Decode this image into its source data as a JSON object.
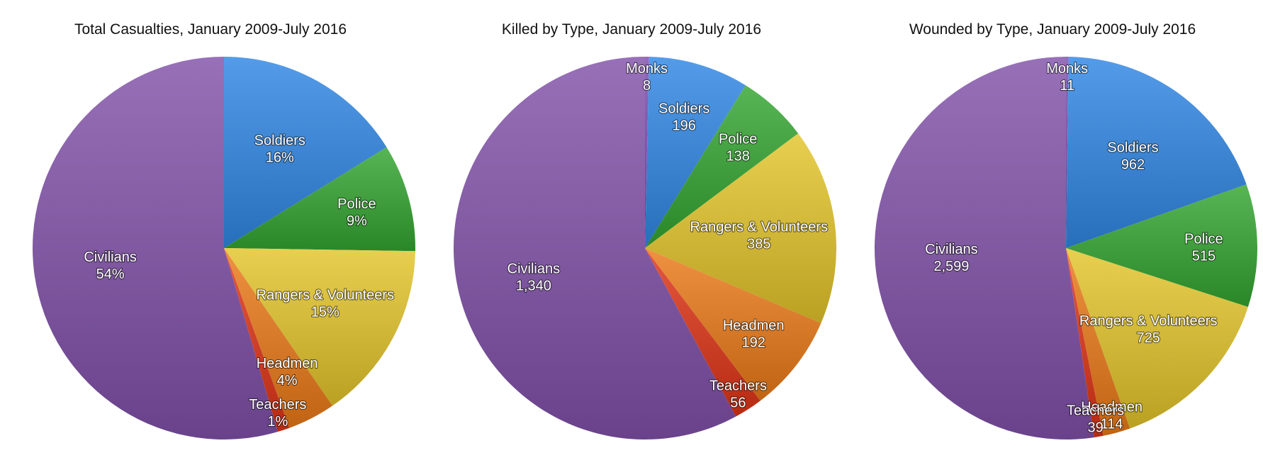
{
  "chart_data": [
    {
      "type": "pie",
      "title": "Total Casualties, January 2009-July 2016",
      "slices": [
        {
          "name": "Soldiers",
          "value": 16,
          "label": "16%",
          "color": "#2f86e4"
        },
        {
          "name": "Police",
          "value": 9,
          "label": "9%",
          "color": "#33a530"
        },
        {
          "name": "Rangers & Volunteers",
          "value": 15,
          "label": "15%",
          "color": "#e3c42a"
        },
        {
          "name": "Headmen",
          "value": 4,
          "label": "4%",
          "color": "#ea7a18"
        },
        {
          "name": "Teachers",
          "value": 1,
          "label": "1%",
          "color": "#df3316"
        },
        {
          "name": "Civilians",
          "value": 54,
          "label": "54%",
          "color": "#8051a9"
        }
      ]
    },
    {
      "type": "pie",
      "title": "Killed by Type, January 2009-July 2016",
      "slices": [
        {
          "name": "Monks",
          "value": 8,
          "label": "8",
          "color": "#7c4bb0"
        },
        {
          "name": "Soldiers",
          "value": 196,
          "label": "196",
          "color": "#2f86e4"
        },
        {
          "name": "Police",
          "value": 138,
          "label": "138",
          "color": "#33a530"
        },
        {
          "name": "Rangers & Volunteers",
          "value": 385,
          "label": "385",
          "color": "#e3c42a"
        },
        {
          "name": "Headmen",
          "value": 192,
          "label": "192",
          "color": "#ea7a18"
        },
        {
          "name": "Teachers",
          "value": 56,
          "label": "56",
          "color": "#df3316"
        },
        {
          "name": "Civilians",
          "value": 1340,
          "label": "1,340",
          "color": "#8051a9"
        }
      ]
    },
    {
      "type": "pie",
      "title": "Wounded by Type, January 2009-July 2016",
      "slices": [
        {
          "name": "Monks",
          "value": 11,
          "label": "11",
          "color": "#7c4bb0"
        },
        {
          "name": "Soldiers",
          "value": 962,
          "label": "962",
          "color": "#2f86e4"
        },
        {
          "name": "Police",
          "value": 515,
          "label": "515",
          "color": "#33a530"
        },
        {
          "name": "Rangers & Volunteers",
          "value": 725,
          "label": "725",
          "color": "#e3c42a"
        },
        {
          "name": "Headmen",
          "value": 114,
          "label": "114",
          "color": "#ea7a18"
        },
        {
          "name": "Teachers",
          "value": 39,
          "label": "39",
          "color": "#df3316"
        },
        {
          "name": "Civilians",
          "value": 2599,
          "label": "2,599",
          "color": "#8051a9"
        }
      ]
    }
  ]
}
